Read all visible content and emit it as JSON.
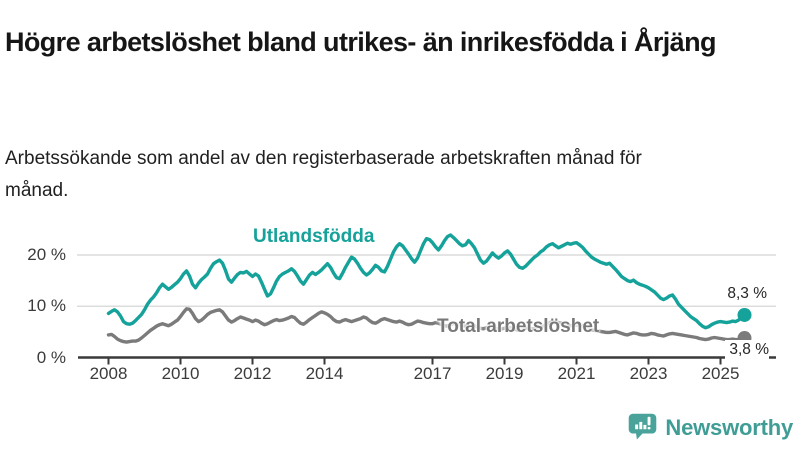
{
  "header": {
    "title": "Högre arbetslöshet bland utrikes- än inrikesfödda i Årjäng",
    "subtitle": "Arbetssökande som andel av den registerbaserade arbetskraften månad för månad."
  },
  "chart_data": {
    "type": "line",
    "unit": "%",
    "x_start": "2008-01",
    "x_end": "2025-09",
    "x_tick_years": [
      2008,
      2010,
      2012,
      2014,
      2017,
      2019,
      2021,
      2023,
      2025
    ],
    "y_ticks": [
      {
        "value": 0,
        "label": "0 %"
      },
      {
        "value": 10,
        "label": "10 %"
      },
      {
        "value": 20,
        "label": "20 %"
      }
    ],
    "ylim": [
      0,
      26
    ],
    "grid": "horizontal",
    "legend_position": "inline-labels",
    "series": [
      {
        "name": "Utlandsfödda",
        "color": "#14A29A",
        "end_label": "8,3 %",
        "last_value": 8.3,
        "values": [
          8.6,
          9.0,
          9.3,
          8.9,
          8.1,
          7.0,
          6.6,
          6.5,
          6.7,
          7.2,
          7.8,
          8.4,
          9.3,
          10.4,
          11.2,
          11.8,
          12.6,
          13.6,
          14.3,
          13.8,
          13.3,
          13.7,
          14.2,
          14.7,
          15.4,
          16.3,
          16.9,
          15.9,
          14.3,
          13.6,
          14.5,
          15.2,
          15.7,
          16.3,
          17.4,
          18.3,
          18.7,
          19.0,
          18.4,
          17.0,
          15.3,
          14.7,
          15.5,
          16.2,
          16.6,
          16.5,
          16.8,
          16.3,
          15.8,
          16.3,
          15.9,
          14.7,
          13.3,
          12.0,
          12.4,
          13.6,
          14.9,
          15.8,
          16.3,
          16.6,
          16.9,
          17.3,
          16.8,
          15.9,
          14.9,
          14.3,
          15.2,
          16.1,
          16.6,
          16.2,
          16.6,
          17.1,
          17.7,
          18.3,
          17.6,
          16.5,
          15.6,
          15.4,
          16.4,
          17.6,
          18.6,
          19.6,
          19.2,
          18.4,
          17.4,
          16.6,
          16.1,
          16.5,
          17.2,
          18.0,
          17.6,
          16.9,
          16.7,
          17.8,
          19.2,
          20.6,
          21.6,
          22.2,
          21.8,
          21.0,
          20.2,
          19.3,
          18.6,
          19.4,
          20.8,
          22.2,
          23.2,
          23.0,
          22.4,
          21.6,
          21.0,
          21.8,
          22.8,
          23.6,
          23.9,
          23.4,
          22.8,
          22.2,
          21.8,
          22.0,
          22.8,
          22.2,
          21.4,
          20.2,
          19.0,
          18.4,
          18.8,
          19.6,
          20.4,
          19.8,
          19.4,
          19.8,
          20.4,
          20.8,
          20.2,
          19.2,
          18.2,
          17.6,
          17.4,
          17.8,
          18.4,
          19.0,
          19.6,
          20.0,
          20.6,
          21.0,
          21.6,
          22.0,
          22.2,
          21.8,
          21.4,
          21.7,
          22.0,
          22.3,
          22.1,
          22.3,
          22.4,
          22.0,
          21.5,
          20.8,
          20.2,
          19.6,
          19.2,
          18.9,
          18.6,
          18.4,
          18.2,
          18.4,
          17.8,
          17.2,
          16.5,
          15.8,
          15.4,
          15.0,
          14.8,
          15.1,
          14.6,
          14.3,
          14.1,
          13.9,
          13.6,
          13.2,
          12.8,
          12.2,
          11.6,
          11.3,
          11.6,
          12.0,
          12.2,
          11.4,
          10.4,
          9.8,
          9.2,
          8.6,
          8.0,
          7.6,
          7.2,
          6.6,
          6.1,
          5.8,
          6.0,
          6.4,
          6.7,
          6.9,
          7.0,
          6.9,
          6.8,
          6.9,
          7.1,
          7.0,
          7.3,
          7.8,
          8.3
        ]
      },
      {
        "name": "Total arbetslöshet",
        "color": "#7B7B7B",
        "end_label": "3,8 %",
        "last_value": 3.8,
        "values": [
          4.4,
          4.5,
          4.1,
          3.6,
          3.3,
          3.1,
          3.0,
          3.1,
          3.2,
          3.2,
          3.4,
          3.8,
          4.3,
          4.8,
          5.3,
          5.7,
          6.1,
          6.4,
          6.6,
          6.4,
          6.2,
          6.5,
          6.9,
          7.3,
          8.0,
          8.8,
          9.5,
          9.4,
          8.6,
          7.6,
          7.0,
          7.3,
          7.8,
          8.4,
          8.8,
          9.0,
          9.2,
          9.3,
          8.9,
          8.1,
          7.3,
          6.9,
          7.2,
          7.6,
          7.9,
          7.7,
          7.5,
          7.3,
          7.0,
          7.3,
          7.1,
          6.7,
          6.4,
          6.6,
          6.9,
          7.2,
          7.4,
          7.2,
          7.3,
          7.5,
          7.7,
          8.0,
          7.8,
          7.2,
          6.7,
          6.5,
          6.9,
          7.4,
          7.8,
          8.2,
          8.6,
          8.9,
          8.7,
          8.4,
          8.0,
          7.4,
          7.0,
          6.9,
          7.2,
          7.4,
          7.2,
          7.0,
          7.2,
          7.4,
          7.6,
          7.9,
          7.7,
          7.2,
          6.8,
          6.7,
          7.0,
          7.4,
          7.6,
          7.4,
          7.2,
          7.0,
          6.9,
          7.1,
          6.9,
          6.6,
          6.4,
          6.5,
          6.8,
          7.1,
          7.0,
          6.8,
          6.7,
          6.6,
          6.6,
          6.8,
          6.7,
          6.4,
          6.2,
          6.1,
          6.4,
          6.6,
          6.5,
          6.3,
          6.2,
          6.1,
          6.1,
          6.3,
          6.2,
          5.9,
          5.7,
          5.6,
          5.8,
          6.0,
          5.9,
          5.7,
          5.6,
          5.6,
          5.7,
          5.9,
          5.8,
          5.6,
          5.4,
          5.3,
          5.6,
          5.8,
          5.7,
          5.6,
          5.6,
          5.7,
          5.9,
          6.1,
          6.4,
          6.8,
          7.0,
          6.9,
          6.8,
          6.7,
          6.5,
          6.3,
          6.2,
          6.2,
          6.3,
          6.4,
          6.2,
          5.9,
          5.6,
          5.4,
          5.3,
          5.2,
          5.1,
          5.0,
          4.9,
          4.9,
          5.0,
          5.1,
          4.9,
          4.7,
          4.5,
          4.4,
          4.6,
          4.8,
          4.7,
          4.5,
          4.4,
          4.4,
          4.5,
          4.7,
          4.6,
          4.4,
          4.3,
          4.2,
          4.4,
          4.6,
          4.7,
          4.6,
          4.5,
          4.4,
          4.3,
          4.2,
          4.1,
          4.0,
          3.9,
          3.7,
          3.6,
          3.5,
          3.6,
          3.8,
          3.9,
          3.8,
          3.7,
          3.6,
          3.5,
          3.5,
          3.6,
          3.5,
          3.5,
          3.6,
          3.8
        ]
      }
    ],
    "style": {
      "grid_color": "#DCDCDC",
      "axis_color": "#3A3A3A",
      "tick_label_color": "#3B3B3B"
    }
  },
  "logo": {
    "text": "Newsworthy",
    "icon": "newsworthy-chart-bubble-icon",
    "color": "#4AA39B"
  }
}
